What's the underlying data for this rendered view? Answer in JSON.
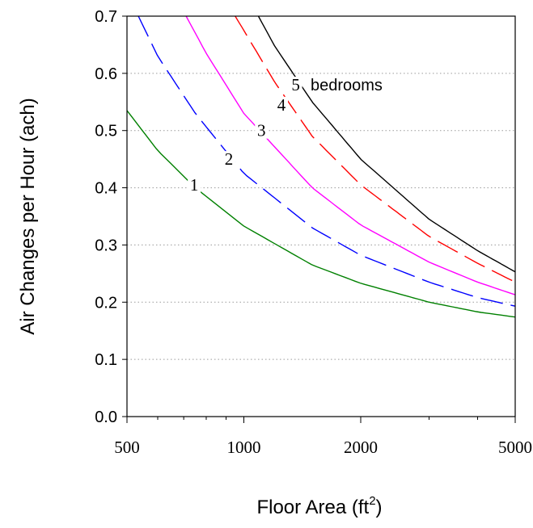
{
  "chart_data": {
    "type": "line",
    "title": "",
    "xlabel": "Floor Area (ft",
    "xlabel_superscript": "2",
    "xlabel_close": ")",
    "ylabel": "Air Changes per Hour (ach)",
    "xscale": "log",
    "xlim": [
      500,
      5000
    ],
    "ylim": [
      0.0,
      0.7
    ],
    "grid": "horizontal dotted",
    "x_ticks": [
      500,
      1000,
      2000,
      5000
    ],
    "x_tick_labels": [
      "500",
      "1000",
      "2000",
      "5000"
    ],
    "y_ticks": [
      0.0,
      0.1,
      0.2,
      0.3,
      0.4,
      0.5,
      0.6,
      0.7
    ],
    "y_tick_labels": [
      "0.0",
      "0.1",
      "0.2",
      "0.3",
      "0.4",
      "0.5",
      "0.6",
      "0.7"
    ],
    "annotation": "bedrooms",
    "series": [
      {
        "name": "1",
        "color": "#008000",
        "dash": "solid",
        "label_at": {
          "x": 745,
          "y": 0.405
        },
        "points": [
          [
            500,
            0.535
          ],
          [
            600,
            0.465
          ],
          [
            750,
            0.4
          ],
          [
            1000,
            0.333
          ],
          [
            1500,
            0.265
          ],
          [
            2000,
            0.233
          ],
          [
            3000,
            0.2
          ],
          [
            4000,
            0.183
          ],
          [
            5000,
            0.174
          ]
        ]
      },
      {
        "name": "2",
        "color": "#0000ff",
        "dash": "dashed",
        "label_at": {
          "x": 915,
          "y": 0.45
        },
        "points": [
          [
            535,
            0.7
          ],
          [
            600,
            0.63
          ],
          [
            750,
            0.53
          ],
          [
            1000,
            0.425
          ],
          [
            1500,
            0.33
          ],
          [
            2000,
            0.282
          ],
          [
            3000,
            0.235
          ],
          [
            4000,
            0.208
          ],
          [
            5000,
            0.193
          ]
        ]
      },
      {
        "name": "3",
        "color": "#ff00ff",
        "dash": "solid",
        "label_at": {
          "x": 1110,
          "y": 0.5
        },
        "points": [
          [
            710,
            0.7
          ],
          [
            800,
            0.635
          ],
          [
            1000,
            0.53
          ],
          [
            1500,
            0.4
          ],
          [
            2000,
            0.335
          ],
          [
            3000,
            0.27
          ],
          [
            4000,
            0.235
          ],
          [
            5000,
            0.213
          ]
        ]
      },
      {
        "name": "4",
        "color": "#ff0000",
        "dash": "dashed",
        "label_at": {
          "x": 1250,
          "y": 0.545
        },
        "points": [
          [
            950,
            0.7
          ],
          [
            1000,
            0.675
          ],
          [
            1200,
            0.585
          ],
          [
            1500,
            0.49
          ],
          [
            2000,
            0.405
          ],
          [
            3000,
            0.315
          ],
          [
            4000,
            0.268
          ],
          [
            5000,
            0.235
          ]
        ]
      },
      {
        "name": "5",
        "color": "#000000",
        "dash": "solid",
        "label_at": {
          "x": 1360,
          "y": 0.58
        },
        "points": [
          [
            1090,
            0.7
          ],
          [
            1200,
            0.648
          ],
          [
            1500,
            0.55
          ],
          [
            2000,
            0.45
          ],
          [
            3000,
            0.345
          ],
          [
            4000,
            0.29
          ],
          [
            5000,
            0.253
          ]
        ]
      }
    ]
  }
}
